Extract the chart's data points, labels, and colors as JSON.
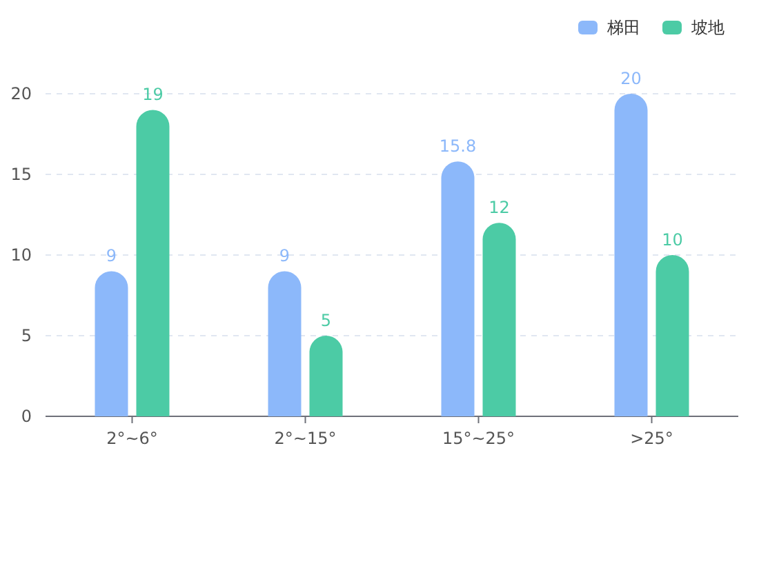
{
  "chart_data": {
    "type": "bar",
    "categories": [
      "2°~6°",
      "2°~15°",
      "15°~25°",
      ">25°"
    ],
    "series": [
      {
        "name": "梯田",
        "color": "#8cb8fa",
        "values": [
          9,
          9,
          15.8,
          20
        ]
      },
      {
        "name": "坡地",
        "color": "#4ccba5",
        "values": [
          19,
          5,
          12,
          10
        ]
      }
    ],
    "ylim": [
      0,
      20
    ],
    "yticks": [
      0,
      5,
      10,
      15,
      20
    ],
    "grid": "y",
    "legend": "top right",
    "data_labels": true
  }
}
